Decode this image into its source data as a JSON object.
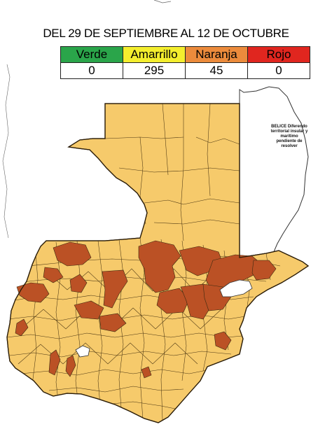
{
  "title": "DEL 29 DE SEPTIEMBRE AL 12 DE OCTUBRE",
  "legend": [
    {
      "label": "Verde",
      "count": "0",
      "color": "#2aa54a"
    },
    {
      "label": "Amarrillo",
      "count": "295",
      "color": "#f4ee2e"
    },
    {
      "label": "Naranja",
      "count": "45",
      "color": "#ec8b3c"
    },
    {
      "label": "Rojo",
      "count": "0",
      "color": "#e0261f"
    }
  ],
  "belice_note": "BELICE Diferendo territorial insular y marítimo pendiente de resolver",
  "map_colors": {
    "amarillo_fill": "#f6ca6b",
    "naranja_fill": "#bb5125",
    "border": "#3a2a10"
  }
}
